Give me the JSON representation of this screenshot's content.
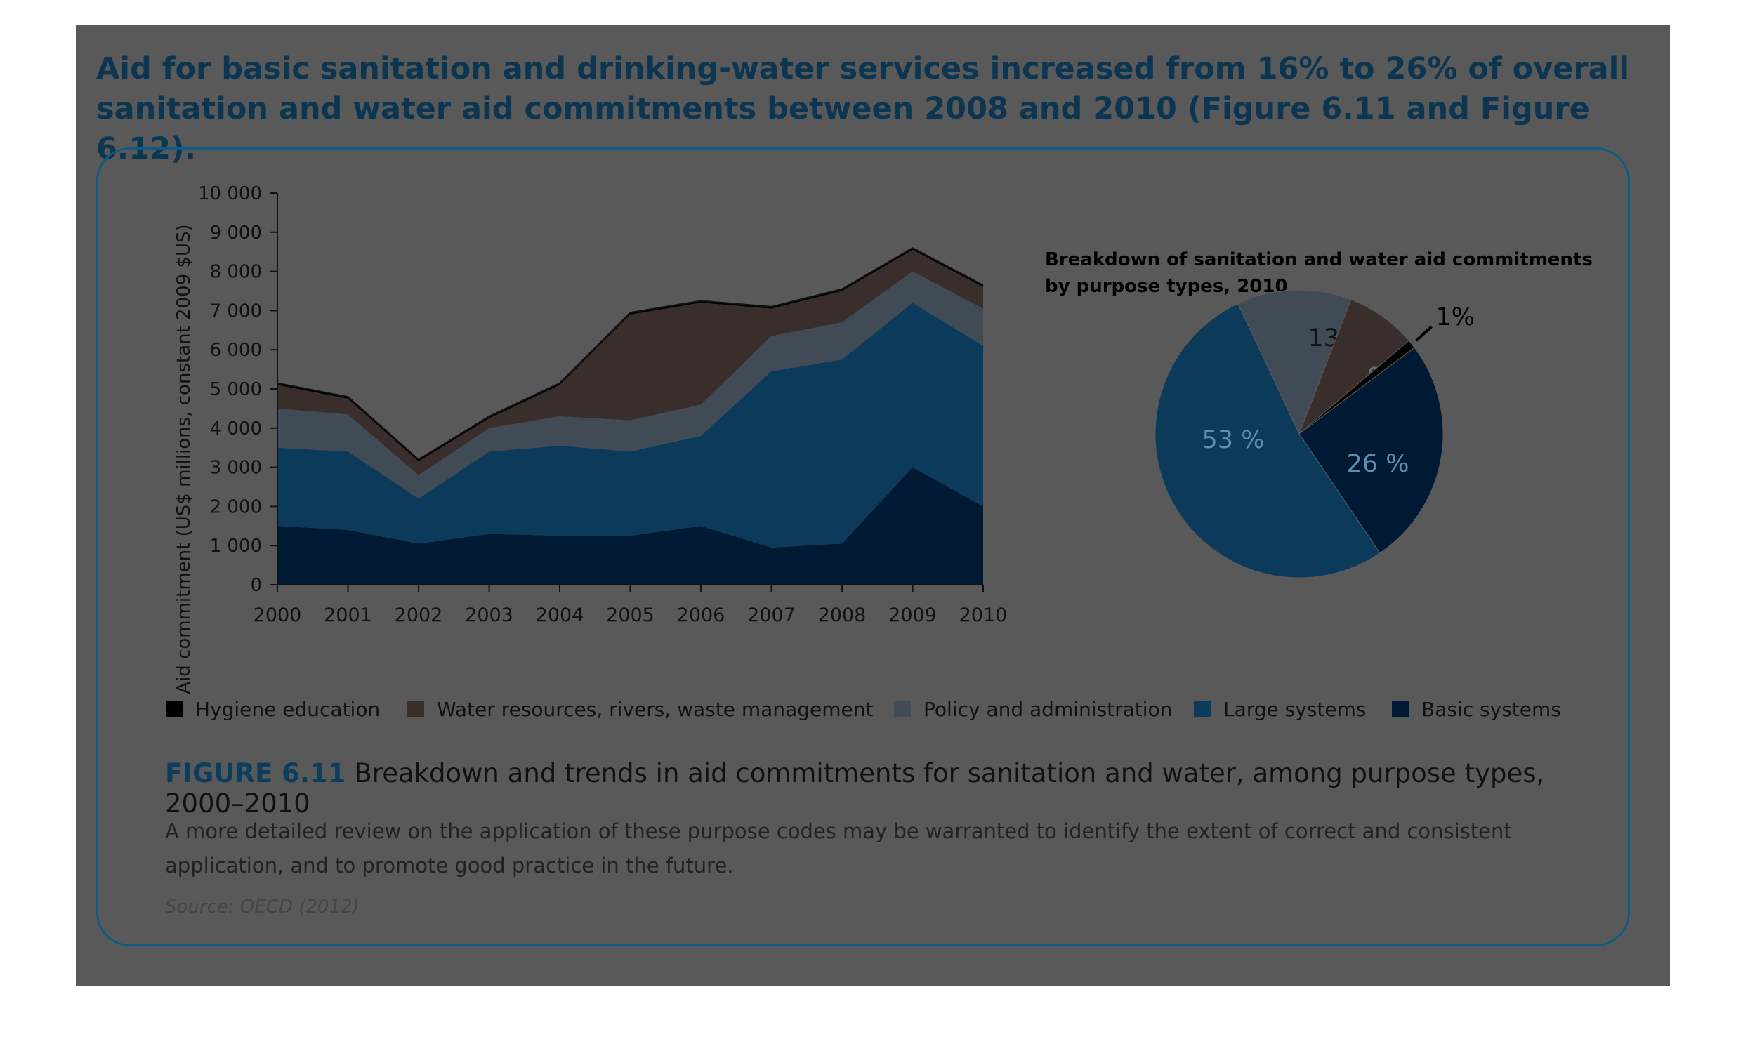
{
  "heading": "Aid for basic sanitation and drinking-water services increased from 16% to 26% of overall sanitation and water aid commitments between 2008 and 2010 (Figure 6.11 and Figure 6.12).",
  "colors": {
    "hygiene": "#000000",
    "water_resources": "#3a2e2c",
    "policy": "#414b56",
    "large": "#0b3a5a",
    "basic": "#001a33",
    "accent": "#0c3d5c"
  },
  "legend": [
    {
      "label": "Hygiene education",
      "color": "#000000"
    },
    {
      "label": "Water resources, rivers, waste management",
      "color": "#3a2e2c"
    },
    {
      "label": "Policy and administration",
      "color": "#414b56"
    },
    {
      "label": "Large systems",
      "color": "#0b3a5a"
    },
    {
      "label": "Basic systems",
      "color": "#001a33"
    }
  ],
  "figure": {
    "number": "FIGURE 6.11",
    "caption": "Breakdown and trends in aid commitments for sanitation and water, among purpose types, 2000–2010",
    "note": "A more detailed review on the application of these purpose codes may be warranted to identify the extent of correct and consistent application, and to promote good practice in the future.",
    "source": "Source: OECD (2012)"
  },
  "chart_data": [
    {
      "type": "area",
      "stacked": true,
      "ylabel": "Aid commitment (US$ millions, constant 2009 $US)",
      "ylim": [
        0,
        10000
      ],
      "yticks": [
        "0",
        "1 000",
        "2 000",
        "3 000",
        "4 000",
        "5 000",
        "6 000",
        "7 000",
        "8 000",
        "9 000",
        "10 000"
      ],
      "x": [
        "2000",
        "2001",
        "2002",
        "2003",
        "2004",
        "2005",
        "2006",
        "2007",
        "2008",
        "2009",
        "2010"
      ],
      "series": [
        {
          "name": "Basic systems",
          "color": "#001a33",
          "values": [
            1500,
            1400,
            1050,
            1300,
            1250,
            1250,
            1500,
            950,
            1050,
            3000,
            2000
          ]
        },
        {
          "name": "Large systems",
          "color": "#0b3a5a",
          "values": [
            2000,
            2000,
            1150,
            2100,
            2300,
            2150,
            2300,
            4500,
            4700,
            4200,
            4100
          ]
        },
        {
          "name": "Policy and administration",
          "color": "#414b56",
          "values": [
            1000,
            950,
            600,
            600,
            750,
            800,
            800,
            900,
            950,
            800,
            950
          ]
        },
        {
          "name": "Water resources, rivers, waste management",
          "color": "#3a2e2c",
          "values": [
            600,
            400,
            350,
            250,
            800,
            2700,
            2600,
            700,
            800,
            550,
            550
          ]
        },
        {
          "name": "Hygiene education",
          "color": "#000000",
          "values": [
            50,
            50,
            50,
            50,
            50,
            50,
            50,
            50,
            50,
            50,
            50
          ]
        }
      ]
    },
    {
      "type": "pie",
      "title": "Breakdown of sanitation and water aid commitments by purpose types, 2010",
      "slices": [
        {
          "name": "Policy and administration",
          "value": 13,
          "label": "13 %",
          "color": "#414b56"
        },
        {
          "name": "Water resources, rivers, waste management",
          "value": 8,
          "label": "8 %",
          "color": "#3a2e2c"
        },
        {
          "name": "Hygiene education",
          "value": 1,
          "label": "1%",
          "color": "#000000"
        },
        {
          "name": "Basic systems",
          "value": 26,
          "label": "26 %",
          "color": "#001a33"
        },
        {
          "name": "Large systems",
          "value": 53,
          "label": "53 %",
          "color": "#0b3a5a"
        }
      ]
    }
  ]
}
